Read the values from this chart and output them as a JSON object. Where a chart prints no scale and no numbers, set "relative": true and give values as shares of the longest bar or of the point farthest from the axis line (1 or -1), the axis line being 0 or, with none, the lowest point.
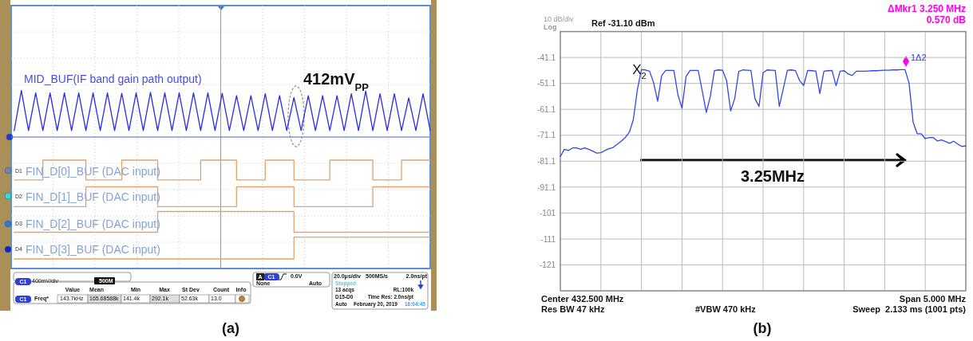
{
  "chart_data": [
    {
      "type": "line",
      "relative": true,
      "grid": true,
      "categories": [
        null,
        null,
        null,
        null,
        null,
        null,
        null,
        null,
        null,
        null,
        null,
        null,
        null,
        null,
        null,
        null,
        null,
        null,
        null,
        null,
        null,
        null,
        null,
        null,
        null,
        null,
        null,
        null,
        null,
        null,
        null,
        null,
        null,
        null,
        null,
        null,
        null,
        null,
        null,
        null,
        null,
        null,
        null,
        null,
        null,
        null,
        null,
        null,
        null,
        null,
        null,
        null,
        null,
        null,
        null,
        null,
        null,
        null,
        null
      ],
      "series": [
        {
          "name": "MID_BUF(IF band gain path output)",
          "color": "#2a2af0",
          "values": [
            0.14,
            1,
            0.14,
            0.95,
            0.14,
            0.95,
            0.14,
            0.95,
            0.14,
            0.95,
            0.14,
            0.95,
            0.14,
            0.95,
            0.14,
            0.94,
            0.14,
            0.95,
            0.14,
            0.96,
            0.14,
            0.95,
            0.14,
            0.95,
            0.14,
            0.95,
            0.14,
            0.95,
            0.14,
            0.94,
            0.14,
            0.89,
            0.14,
            0.89,
            0.14,
            0.93,
            0.14,
            0.89,
            0.14,
            0.85,
            0.14,
            0.89,
            0.14,
            0.89,
            0.14,
            0.89,
            0.14,
            0.93,
            0.14,
            0.99,
            0.14,
            0.93,
            0.14,
            0.93,
            0.14,
            0.84,
            0.14,
            0.93,
            0.14
          ]
        }
      ],
      "annotations": [
        "412mV$_{PP}$",
        "400mV/div",
        "500M",
        "Value",
        "Mean",
        "Min",
        "Max",
        "St Dev",
        "Count",
        "Info",
        "Freq*",
        "143.7kHz",
        "165.68588k",
        "141.4k",
        "292.1k",
        "52.63k",
        "13.0",
        "0.0V",
        "None",
        "Auto",
        "20.0μs/div",
        "500MS/s",
        "2.0ns/pt",
        "Stopped",
        "13 acqs",
        "RL:100k",
        "D15-D0",
        "Time Res: 2.0ns/pt",
        "Auto",
        "February 20, 2019",
        "16:04:45",
        "D1",
        "D2",
        "D3",
        "D4",
        "C1",
        "C1",
        "C1",
        "A",
        "(a)"
      ]
    },
    {
      "type": "step",
      "relative": true,
      "categories": [
        null,
        null,
        null,
        null,
        null,
        null,
        null,
        null,
        null,
        null,
        null,
        null,
        null,
        null,
        null,
        null,
        null,
        null,
        null,
        null,
        null,
        null,
        null,
        null,
        null,
        null,
        null,
        null,
        null,
        null,
        null,
        null,
        null,
        null,
        null,
        null,
        null,
        null,
        null,
        null,
        null,
        null,
        null,
        null,
        null,
        null,
        null,
        null,
        null,
        null,
        null,
        null,
        null,
        null,
        null,
        null,
        null,
        null,
        null
      ],
      "series": [
        {
          "name": "FIN_D[0]_BUF (DAC input)",
          "color": "#e2a46c",
          "values": [
            0.8,
            0.8,
            0.8,
            0.8,
            1,
            1,
            1,
            1,
            1,
            1,
            0.8,
            0.8,
            0.8,
            0.8,
            0.8,
            1,
            1,
            1,
            1,
            1,
            0.8,
            0.8,
            0.8,
            0.8,
            0.8,
            0.8,
            1,
            1,
            1,
            1,
            1,
            0.8,
            0.8,
            0.8,
            0.8,
            1,
            1,
            1,
            1,
            0.8,
            0.8,
            0.8,
            0.8,
            0.8,
            1,
            1,
            1,
            1,
            1,
            1,
            0.8,
            0.8,
            0.8,
            0.8,
            1,
            1,
            1,
            1,
            1
          ]
        },
        {
          "name": "FIN_D[1]_BUF (DAC input)",
          "color": "#e2a46c",
          "values": [
            0.53,
            0.53,
            0.53,
            0.53,
            0.53,
            0.53,
            0.53,
            0.53,
            0.53,
            0.53,
            0.73,
            0.73,
            0.73,
            0.73,
            0.73,
            0.73,
            0.73,
            0.73,
            0.73,
            0.73,
            0.53,
            0.53,
            0.53,
            0.53,
            0.53,
            0.53,
            0.53,
            0.53,
            0.53,
            0.53,
            0.53,
            0.73,
            0.73,
            0.73,
            0.73,
            0.73,
            0.73,
            0.73,
            0.73,
            0.53,
            0.53,
            0.53,
            0.53,
            0.53,
            0.53,
            0.53,
            0.53,
            0.53,
            0.53,
            0.53,
            0.73,
            0.73,
            0.73,
            0.73,
            0.73,
            0.73,
            0.73,
            0.73,
            0.73
          ]
        },
        {
          "name": "FIN_D[2]_BUF (DAC input)",
          "color": "#e2a46c",
          "values": [
            0.27,
            0.27,
            0.27,
            0.27,
            0.27,
            0.27,
            0.27,
            0.27,
            0.27,
            0.27,
            0.27,
            0.27,
            0.27,
            0.27,
            0.27,
            0.27,
            0.27,
            0.27,
            0.27,
            0.27,
            0.48,
            0.48,
            0.48,
            0.48,
            0.48,
            0.48,
            0.48,
            0.48,
            0.48,
            0.48,
            0.48,
            0.48,
            0.48,
            0.48,
            0.48,
            0.48,
            0.48,
            0.48,
            0.48,
            0.27,
            0.27,
            0.27,
            0.27,
            0.27,
            0.27,
            0.27,
            0.27,
            0.27,
            0.27,
            0.27,
            0.27,
            0.27,
            0.27,
            0.27,
            0.27,
            0.27,
            0.27,
            0.27,
            0.27
          ]
        },
        {
          "name": "FIN_D[3]_BUF (DAC input)",
          "color": "#e2a46c",
          "values": [
            0,
            0,
            0,
            0,
            0,
            0,
            0,
            0,
            0,
            0,
            0,
            0,
            0,
            0,
            0,
            0,
            0,
            0,
            0,
            0,
            0,
            0,
            0,
            0,
            0,
            0,
            0,
            0,
            0,
            0,
            0,
            0,
            0,
            0,
            0,
            0,
            0,
            0,
            0,
            0.22,
            0.22,
            0.22,
            0.22,
            0.22,
            0.22,
            0.22,
            0.22,
            0.22,
            0.22,
            0.22,
            0.22,
            0.22,
            0.22,
            0.22,
            0.22,
            0.22,
            0.22,
            0.22,
            0.22
          ]
        }
      ]
    },
    {
      "type": "line",
      "grid": true,
      "tick_labels": "y",
      "categories": [
        null,
        null,
        null,
        null,
        null,
        null,
        null,
        null,
        null,
        null,
        null,
        null,
        null,
        null,
        null,
        null,
        null,
        null,
        null,
        null,
        null,
        null,
        null,
        null,
        null,
        null,
        null,
        null,
        null,
        null,
        null,
        null,
        null,
        null,
        null,
        null,
        null,
        null,
        null,
        null,
        null,
        null,
        null,
        null,
        null,
        null,
        null,
        null,
        null,
        null,
        null,
        null,
        null,
        null,
        null,
        null,
        null,
        null,
        null,
        null,
        null,
        null,
        null,
        null,
        null,
        null,
        null,
        null,
        null,
        null,
        null,
        null,
        null,
        null,
        null,
        null,
        null,
        null,
        null,
        null,
        null,
        null,
        null,
        null,
        null,
        null,
        null,
        null,
        null,
        null,
        null,
        null,
        null,
        null,
        null,
        null,
        null,
        null,
        null,
        null,
        null
      ],
      "ylim": [
        -131.1,
        -31.1
      ],
      "yticks": [
        {
          "value": -41.1,
          "label": "-41.1"
        },
        {
          "value": -51.1,
          "label": "-51.1"
        },
        {
          "value": -61.1,
          "label": "-61.1"
        },
        {
          "value": -71.1,
          "label": "-71.1"
        },
        {
          "value": -81.1,
          "label": "-81.1"
        },
        {
          "value": -91.1,
          "label": "-91.1"
        },
        {
          "value": -101.1,
          "label": "-101"
        },
        {
          "value": -111.1,
          "label": "-111"
        },
        {
          "value": -121.1,
          "label": "-121"
        }
      ],
      "series": [
        {
          "color": "#3344ee",
          "values": [
            -79.3,
            -76.5,
            -77,
            -76,
            -76,
            -76.5,
            -76,
            -76.5,
            -77.2,
            -78,
            -77.8,
            -77,
            -76.3,
            -75.8,
            -74.6,
            -73.4,
            -72,
            -70,
            -65.1,
            -53.5,
            -45.8,
            -45.9,
            -46.4,
            -50.8,
            -58,
            -48,
            -46.1,
            -46.1,
            -46.1,
            -55.5,
            -60.7,
            -48.5,
            -46.1,
            -46.1,
            -46.1,
            -54.1,
            -62.3,
            -56,
            -46.2,
            -45.9,
            -46,
            -50,
            -61.7,
            -57,
            -46.5,
            -45.9,
            -46,
            -46.1,
            -57,
            -60,
            -47,
            -45.9,
            -46,
            -46.1,
            -60,
            -53,
            -46,
            -45.9,
            -46.2,
            -50,
            -51.9,
            -46.1,
            -46.2,
            -46.3,
            -55,
            -46.4,
            -46.2,
            -46.1,
            -52,
            -46.4,
            -46.2,
            -47.5,
            -48,
            -46.4,
            -46.4,
            -46.4,
            -46.3,
            -46.2,
            -46.2,
            -46.1,
            -46,
            -46,
            -45.9,
            -45.9,
            -45.8,
            -45.8,
            -51,
            -66,
            -70.5,
            -70.5,
            -72.4,
            -72,
            -72,
            -73.3,
            -72.9,
            -73.5,
            -74.2,
            -73.4,
            -74.5,
            -75.4,
            -75.2
          ]
        }
      ],
      "annotations": [
        "10 dB/div",
        "Log",
        "Ref -31.10 dBm",
        "ΔMkr1 3.250 MHz",
        "0.570 dB",
        "Center 432.500 MHz",
        "Span 5.000 MHz",
        "Res BW 47 kHz",
        "#VBW 470 kHz",
        "Sweep  2.133 ms (1001 pts)",
        "(b)",
        "X$_{2}$",
        "1Δ2",
        "3.25MHz"
      ]
    }
  ]
}
